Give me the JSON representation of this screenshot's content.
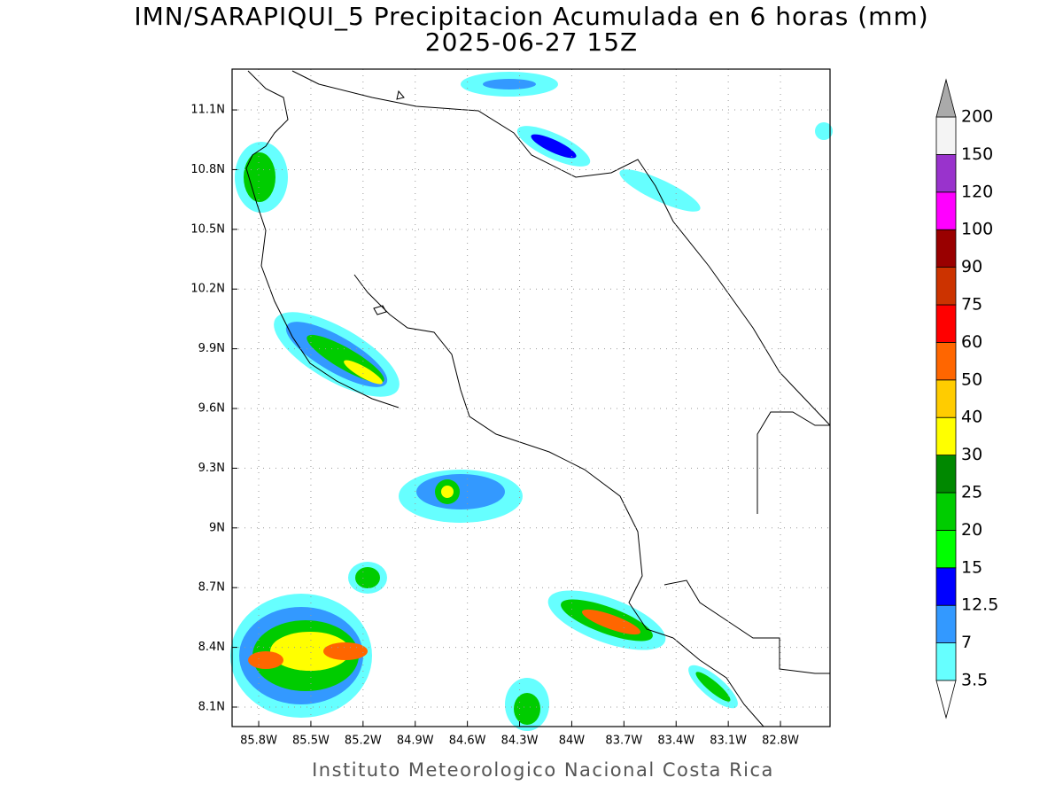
{
  "header": {
    "title": "IMN/SARAPIQUI_5 Precipitacion Acumulada en 6 horas (mm)",
    "subtitle": "2025-06-27 15Z"
  },
  "map": {
    "lonlim": [
      -85.953,
      -82.515
    ],
    "latlim": [
      8.002,
      11.305
    ],
    "grid": true,
    "lat_ticks": [
      {
        "value": 8.1,
        "label": "8.1N"
      },
      {
        "value": 8.4,
        "label": "8.4N"
      },
      {
        "value": 8.7,
        "label": "8.7N"
      },
      {
        "value": 9,
        "label": "9N"
      },
      {
        "value": 9.3,
        "label": "9.3N"
      },
      {
        "value": 9.6,
        "label": "9.6N"
      },
      {
        "value": 9.9,
        "label": "9.9N"
      },
      {
        "value": 10.2,
        "label": "10.2N"
      },
      {
        "value": 10.5,
        "label": "10.5N"
      },
      {
        "value": 10.8,
        "label": "10.8N"
      },
      {
        "value": 11.1,
        "label": "11.1N"
      }
    ],
    "lon_ticks": [
      {
        "value": -85.8,
        "label": "85.8W"
      },
      {
        "value": -85.5,
        "label": "85.5W"
      },
      {
        "value": -85.2,
        "label": "85.2W"
      },
      {
        "value": -84.9,
        "label": "84.9W"
      },
      {
        "value": -84.6,
        "label": "84.6W"
      },
      {
        "value": -84.3,
        "label": "84.3W"
      },
      {
        "value": -84,
        "label": "84W"
      },
      {
        "value": -83.7,
        "label": "83.7W"
      },
      {
        "value": -83.4,
        "label": "83.4W"
      },
      {
        "value": -83.1,
        "label": "83.1W"
      },
      {
        "value": -82.8,
        "label": "82.8W"
      }
    ]
  },
  "colorbar": {
    "levels": [
      3.5,
      7,
      12.5,
      15,
      20,
      25,
      30,
      40,
      50,
      60,
      75,
      90,
      100,
      120,
      150,
      200
    ],
    "colors": [
      "#66ffff",
      "#3399ff",
      "#0000ff",
      "#00ff00",
      "#00cc00",
      "#008800",
      "#ffff00",
      "#ffcc00",
      "#ff6600",
      "#ff0000",
      "#cc3300",
      "#990000",
      "#ff00ff",
      "#9933cc",
      "#f4f4f4"
    ],
    "under_color": "#ffffff",
    "over_color": "#aaaaaa"
  },
  "footer": "Instituto Meteorologico Nacional Costa Rica"
}
